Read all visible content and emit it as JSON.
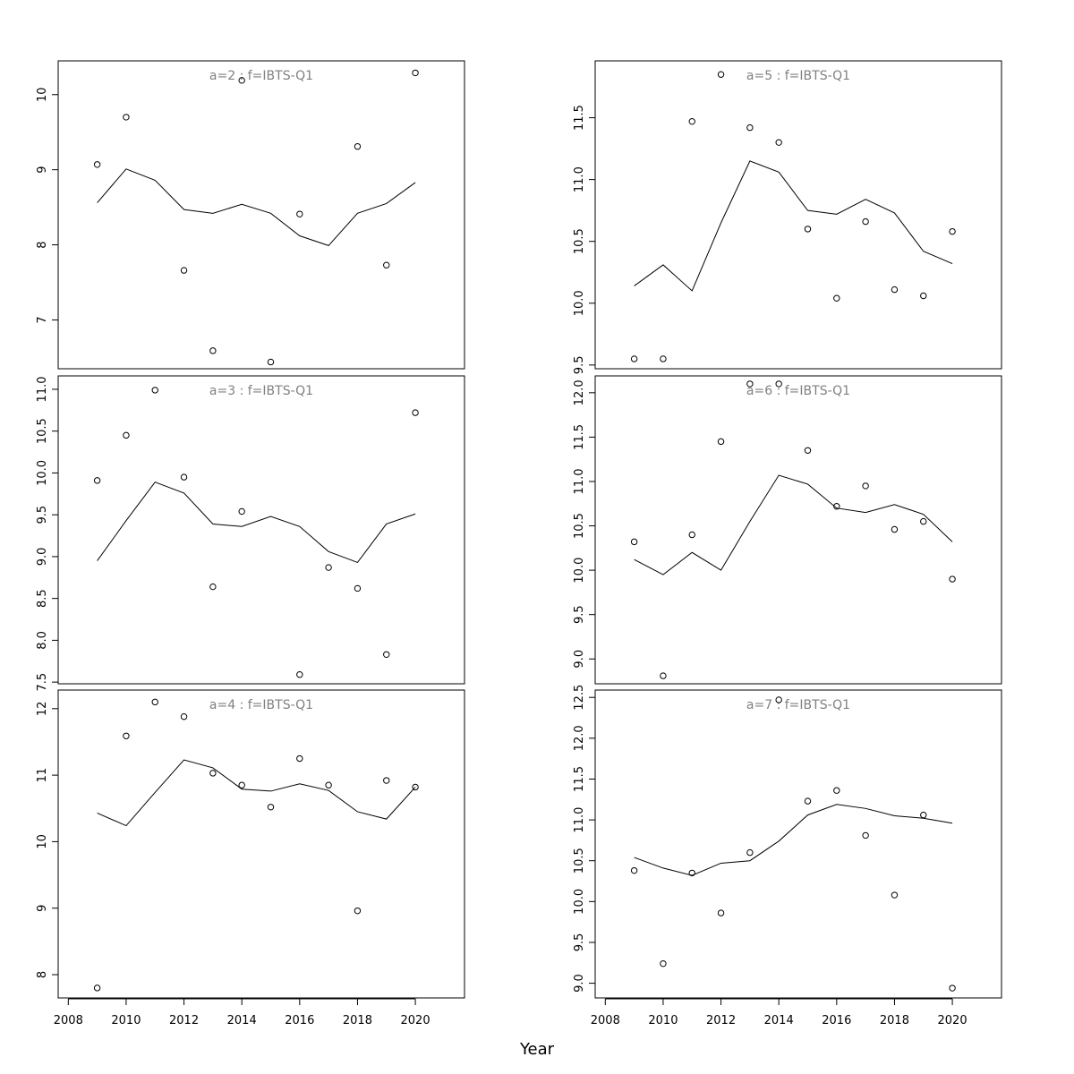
{
  "chart_data": [
    {
      "type": "line",
      "title": "a=2 : f=IBTS-Q1",
      "xlabel": "",
      "ylabel": "",
      "ylim": [
        6.35,
        10.45
      ],
      "yticks": [
        7,
        8,
        9,
        10
      ],
      "x": [
        2009,
        2010,
        2011,
        2012,
        2013,
        2014,
        2015,
        2016,
        2017,
        2018,
        2019,
        2020
      ],
      "series": [
        {
          "style": "points",
          "values": [
            9.07,
            9.7,
            null,
            7.66,
            6.59,
            10.19,
            6.44,
            8.41,
            null,
            9.31,
            7.73,
            10.29
          ]
        },
        {
          "style": "line",
          "values": [
            8.56,
            9.01,
            8.86,
            8.47,
            8.42,
            8.54,
            8.42,
            8.12,
            7.99,
            8.42,
            8.55,
            8.83
          ]
        }
      ]
    },
    {
      "type": "line",
      "title": "a=3 : f=IBTS-Q1",
      "xlabel": "",
      "ylabel": "",
      "ylim": [
        7.48,
        11.16
      ],
      "yticks": [
        7.5,
        8.0,
        8.5,
        9.0,
        9.5,
        10.0,
        10.5,
        11.0
      ],
      "ytick_labels": [
        "7.5",
        "8.0",
        "8.5",
        "9.0",
        "9.5",
        "10.0",
        "10.5",
        "11.0"
      ],
      "x": [
        2009,
        2010,
        2011,
        2012,
        2013,
        2014,
        2015,
        2016,
        2017,
        2018,
        2019,
        2020
      ],
      "series": [
        {
          "style": "points",
          "values": [
            9.91,
            10.45,
            10.99,
            9.95,
            8.64,
            9.54,
            null,
            7.59,
            8.87,
            8.62,
            7.83,
            10.72
          ]
        },
        {
          "style": "line",
          "values": [
            8.95,
            9.43,
            9.89,
            9.76,
            9.39,
            9.36,
            9.48,
            9.36,
            9.06,
            8.93,
            9.39,
            9.51
          ]
        }
      ]
    },
    {
      "type": "line",
      "title": "a=4 : f=IBTS-Q1",
      "xlabel": "",
      "ylabel": "",
      "ylim": [
        7.65,
        12.28
      ],
      "yticks": [
        8,
        9,
        10,
        11,
        12
      ],
      "x": [
        2009,
        2010,
        2011,
        2012,
        2013,
        2014,
        2015,
        2016,
        2017,
        2018,
        2019,
        2020
      ],
      "xticks": [
        2008,
        2010,
        2012,
        2014,
        2016,
        2018,
        2020
      ],
      "series": [
        {
          "style": "points",
          "values": [
            7.8,
            11.59,
            12.1,
            11.88,
            11.03,
            10.85,
            10.52,
            11.25,
            10.85,
            8.96,
            10.92,
            10.82
          ]
        },
        {
          "style": "line",
          "values": [
            10.43,
            10.24,
            10.74,
            11.23,
            11.11,
            10.79,
            10.76,
            10.87,
            10.77,
            10.45,
            10.34,
            10.82
          ]
        }
      ]
    },
    {
      "type": "line",
      "title": "a=5 : f=IBTS-Q1",
      "xlabel": "",
      "ylabel": "",
      "ylim": [
        9.47,
        11.96
      ],
      "yticks": [
        9.5,
        10.0,
        10.5,
        11.0,
        11.5
      ],
      "ytick_labels": [
        "9.5",
        "10.0",
        "10.5",
        "11.0",
        "11.5"
      ],
      "x": [
        2009,
        2010,
        2011,
        2012,
        2013,
        2014,
        2015,
        2016,
        2017,
        2018,
        2019,
        2020
      ],
      "series": [
        {
          "style": "points",
          "values": [
            9.55,
            9.55,
            11.47,
            11.85,
            11.42,
            11.3,
            10.6,
            10.04,
            10.66,
            10.11,
            10.06,
            10.58
          ]
        },
        {
          "style": "line",
          "values": [
            10.14,
            10.31,
            10.1,
            10.65,
            11.15,
            11.06,
            10.75,
            10.72,
            10.84,
            10.73,
            10.42,
            10.32
          ]
        }
      ]
    },
    {
      "type": "line",
      "title": "a=6 : f=IBTS-Q1",
      "xlabel": "",
      "ylabel": "",
      "ylim": [
        8.72,
        12.19
      ],
      "yticks": [
        9.0,
        9.5,
        10.0,
        10.5,
        11.0,
        11.5,
        12.0
      ],
      "ytick_labels": [
        "9.0",
        "9.5",
        "10.0",
        "10.5",
        "11.0",
        "11.5",
        "12.0"
      ],
      "x": [
        2009,
        2010,
        2011,
        2012,
        2013,
        2014,
        2015,
        2016,
        2017,
        2018,
        2019,
        2020
      ],
      "series": [
        {
          "style": "points",
          "values": [
            10.32,
            8.81,
            10.4,
            11.45,
            12.1,
            12.1,
            11.35,
            10.72,
            10.95,
            10.46,
            10.55,
            9.9
          ]
        },
        {
          "style": "line",
          "values": [
            10.12,
            9.95,
            10.2,
            10.0,
            10.55,
            11.07,
            10.97,
            10.7,
            10.65,
            10.74,
            10.63,
            10.32
          ]
        }
      ]
    },
    {
      "type": "line",
      "title": "a=7 : f=IBTS-Q1",
      "xlabel": "",
      "ylabel": "",
      "ylim": [
        8.82,
        12.59
      ],
      "yticks": [
        9.0,
        9.5,
        10.0,
        10.5,
        11.0,
        11.5,
        12.0,
        12.5
      ],
      "ytick_labels": [
        "9.0",
        "9.5",
        "10.0",
        "10.5",
        "11.0",
        "11.5",
        "12.0",
        "12.5"
      ],
      "x": [
        2009,
        2010,
        2011,
        2012,
        2013,
        2014,
        2015,
        2016,
        2017,
        2018,
        2019,
        2020
      ],
      "xticks": [
        2008,
        2010,
        2012,
        2014,
        2016,
        2018,
        2020
      ],
      "series": [
        {
          "style": "points",
          "values": [
            10.38,
            9.24,
            10.35,
            9.86,
            10.6,
            12.47,
            11.23,
            11.36,
            10.81,
            10.08,
            11.06,
            8.94
          ]
        },
        {
          "style": "line",
          "values": [
            10.54,
            10.41,
            10.32,
            10.47,
            10.5,
            10.74,
            11.06,
            11.19,
            11.14,
            11.05,
            11.02,
            10.96
          ]
        }
      ]
    }
  ],
  "xlabel": "Year"
}
